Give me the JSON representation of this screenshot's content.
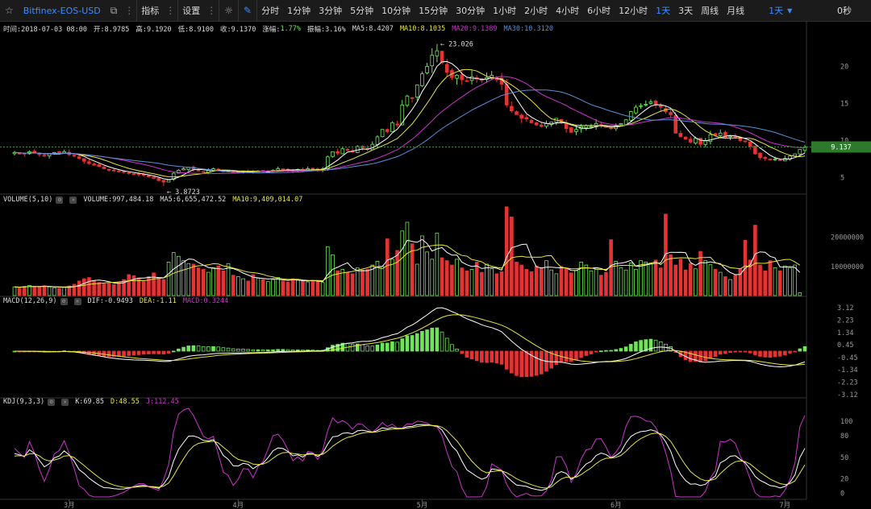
{
  "toolbar": {
    "symbol": "Bitfinex-EOS-USD",
    "indicators_label": "指标",
    "settings_label": "设置",
    "periods": [
      "分时",
      "1分钟",
      "3分钟",
      "5分钟",
      "10分钟",
      "15分钟",
      "30分钟",
      "1小时",
      "2小时",
      "4小时",
      "6小时",
      "12小时",
      "1天",
      "3天",
      "周线",
      "月线"
    ],
    "active_period": "1天",
    "period_dropdown": "1天",
    "countdown": "0秒"
  },
  "info": {
    "time": "时间:2018-07-03 08:00",
    "open": "开:8.9785",
    "high": "高:9.1920",
    "low": "低:8.9100",
    "close": "收:9.1370",
    "change_label": "涨幅:",
    "change": "1.77%",
    "amp": "振幅:3.16%",
    "ma5": "MA5:8.4207",
    "ma10": "MA10:8.1035",
    "ma20": "MA20:9.1389",
    "ma30": "MA30:10.3120"
  },
  "volume_info": {
    "name": "VOLUME(5,10)",
    "vol": "VOLUME:997,484.18",
    "ma5": "MA5:6,655,472.52",
    "ma10": "MA10:9,409,014.07"
  },
  "macd_info": {
    "name": "MACD(12,26,9)",
    "dif": "DIF:-0.9493",
    "dea": "DEA:-1.11",
    "macd": "MACD:0.3244"
  },
  "kdj_info": {
    "name": "KDJ(9,3,3)",
    "k": "K:69.85",
    "d": "D:48.55",
    "j": "J:112.45"
  },
  "colors": {
    "up": "#6fe65a",
    "down": "#e53232",
    "ma5": "#ffffff",
    "ma10": "#e6e644",
    "ma20": "#cc33cc",
    "ma30": "#5b8fd6",
    "accent": "#3d8bff",
    "price_tag": "#2d7a2d"
  },
  "chart_data": [
    {
      "type": "candlestick",
      "title": "",
      "x_labels": [
        "3月",
        "4月",
        "5月",
        "6月",
        "7月"
      ],
      "y_ticks": [
        5,
        10,
        15,
        20
      ],
      "ylim": [
        3,
        24.5
      ],
      "last_price": "9.137",
      "high_annotation": "23.026",
      "low_annotation": "3.8723",
      "close": [
        8.4,
        8.3,
        8.2,
        8.5,
        8.3,
        8.1,
        8.0,
        8.2,
        8.4,
        8.3,
        8.5,
        8.1,
        7.9,
        7.6,
        7.2,
        6.9,
        6.7,
        6.5,
        6.2,
        6.0,
        5.9,
        5.8,
        5.7,
        5.6,
        5.5,
        5.4,
        5.3,
        5.1,
        4.9,
        4.6,
        4.4,
        4.7,
        5.6,
        6.0,
        6.2,
        6.4,
        6.1,
        5.9,
        5.7,
        6.0,
        6.2,
        6.0,
        5.8,
        5.9,
        5.7,
        5.8,
        5.9,
        5.8,
        5.7,
        5.9,
        5.8,
        5.9,
        6.0,
        6.2,
        6.1,
        6.0,
        5.9,
        6.1,
        6.0,
        6.2,
        6.1,
        6.0,
        6.2,
        7.8,
        8.5,
        8.3,
        8.9,
        8.7,
        8.5,
        9.2,
        9.0,
        8.8,
        9.5,
        10.5,
        11.5,
        11.2,
        12.4,
        12.1,
        14.8,
        16.0,
        15.7,
        17.5,
        19.0,
        20.0,
        21.5,
        22.1,
        20.5,
        19.2,
        18.5,
        18.8,
        18.2,
        18.0,
        18.6,
        18.3,
        18.1,
        18.5,
        18.8,
        18.2,
        17.6,
        14.8,
        14.0,
        13.5,
        13.0,
        12.9,
        12.4,
        12.1,
        11.9,
        12.3,
        12.5,
        13.0,
        12.4,
        11.6,
        11.1,
        11.5,
        11.9,
        12.0,
        11.9,
        12.3,
        12.1,
        11.8,
        11.6,
        12.0,
        12.3,
        12.8,
        13.9,
        14.5,
        14.7,
        14.9,
        15.2,
        14.8,
        14.5,
        13.9,
        13.5,
        11.0,
        10.5,
        10.2,
        9.8,
        10.3,
        9.5,
        10.0,
        10.8,
        10.7,
        11.0,
        10.4,
        10.6,
        10.4,
        10.0,
        9.9,
        9.2,
        8.2,
        7.7,
        7.6,
        7.4,
        7.5,
        7.3,
        7.6,
        7.9,
        8.2,
        8.8,
        9.137
      ],
      "ma_series": [
        {
          "name": "MA5",
          "values": "computed"
        },
        {
          "name": "MA10",
          "values": "computed"
        },
        {
          "name": "MA20",
          "values": "computed"
        },
        {
          "name": "MA30",
          "values": "computed"
        }
      ]
    },
    {
      "type": "bar",
      "title": "",
      "y_ticks": [
        10000000,
        20000000
      ],
      "y_tick_labels": [
        "10000000",
        "20000000"
      ],
      "ylim": [
        0,
        31000000
      ],
      "last_value": "997484.18",
      "values": [
        3.0,
        2.8,
        3.2,
        3.5,
        3.1,
        2.9,
        3.4,
        3.0,
        2.7,
        2.5,
        2.8,
        3.3,
        3.9,
        5.0,
        5.8,
        6.2,
        5.1,
        4.5,
        4.0,
        4.2,
        3.8,
        4.6,
        5.5,
        7.2,
        6.8,
        5.9,
        4.8,
        6.5,
        7.8,
        6.0,
        5.5,
        11.5,
        14.8,
        13.5,
        12.0,
        11.0,
        10.8,
        9.5,
        9.0,
        8.0,
        9.6,
        10.2,
        8.5,
        11.0,
        7.0,
        6.5,
        5.8,
        5.0,
        7.2,
        6.0,
        5.5,
        4.8,
        5.5,
        6.2,
        5.0,
        4.6,
        5.8,
        5.3,
        4.9,
        4.7,
        5.2,
        4.8,
        4.5,
        16.8,
        14.0,
        8.5,
        9.0,
        8.0,
        7.5,
        9.5,
        8.8,
        9.0,
        10.5,
        11.8,
        10.0,
        19.5,
        12.5,
        15.5,
        22.2,
        25.2,
        17.8,
        10.8,
        20.5,
        15.0,
        12.5,
        21.5,
        13.0,
        12.0,
        10.5,
        12.5,
        9.5,
        8.5,
        9.0,
        11.5,
        8.0,
        10.8,
        9.2,
        7.5,
        8.2,
        30.5,
        27.0,
        11.5,
        10.5,
        9.0,
        8.2,
        10.2,
        9.5,
        12.0,
        8.8,
        7.5,
        10.0,
        9.2,
        7.8,
        8.6,
        11.5,
        10.5,
        8.5,
        9.0,
        7.0,
        8.0,
        19.2,
        11.8,
        9.6,
        8.8,
        11.2,
        9.0,
        12.0,
        11.5,
        10.8,
        12.2,
        9.5,
        28.0,
        14.0,
        10.5,
        12.5,
        8.8,
        11.0,
        9.2,
        15.2,
        12.0,
        10.6,
        9.0,
        8.0,
        6.5,
        5.5,
        7.0,
        9.2,
        19.0,
        12.2,
        24.2,
        10.5,
        8.5,
        12.0,
        9.6,
        8.5,
        10.2,
        9.5,
        10.5,
        0.9975
      ],
      "ma_series": [
        {
          "name": "MA5",
          "values": "computed"
        },
        {
          "name": "MA10",
          "values": "computed"
        }
      ]
    },
    {
      "type": "bar",
      "title": "",
      "y_ticks": [
        3.12,
        2.23,
        1.34,
        0.45,
        -0.45,
        -1.34,
        -2.23,
        -3.12
      ],
      "y_tick_labels": [
        "3.12",
        "2.23",
        "1.34",
        "0.45",
        "-0.45",
        "-1.34",
        "-2.23",
        "-3.12"
      ],
      "ylim": [
        -3.3,
        3.3
      ],
      "series": [
        {
          "name": "DIF"
        },
        {
          "name": "DEA"
        },
        {
          "name": "MACD"
        }
      ]
    },
    {
      "type": "line",
      "title": "",
      "y_ticks": [
        100,
        80,
        50,
        20,
        0
      ],
      "y_tick_labels": [
        "100",
        "80",
        "50",
        "20",
        "0"
      ],
      "ylim": [
        -5,
        118
      ],
      "series": [
        {
          "name": "K"
        },
        {
          "name": "D"
        },
        {
          "name": "J"
        }
      ]
    }
  ]
}
